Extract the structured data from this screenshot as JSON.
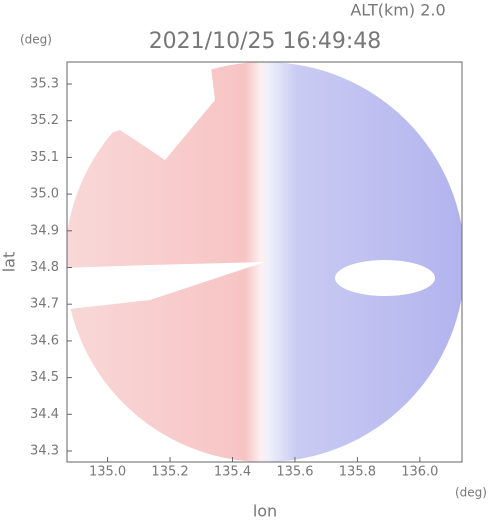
{
  "chart_data": {
    "type": "radar_field",
    "title": "2021/10/25 16:49:48",
    "subtitle": "ALT(km) 2.0",
    "x_label": "lon",
    "y_label": "lat",
    "x_unit": "(deg)",
    "y_unit": "(deg)",
    "xlim": [
      134.87,
      136.135
    ],
    "ylim": [
      34.27,
      35.36
    ],
    "xticks": [
      {
        "value": 135,
        "label": "135.0"
      },
      135.2,
      135.4,
      135.6,
      135.8,
      {
        "value": 136,
        "label": "136.0"
      }
    ],
    "yticks": [
      34.3,
      34.4,
      34.5,
      34.6,
      34.7,
      34.8,
      34.9,
      {
        "value": 35,
        "label": "35.0"
      },
      35.1,
      35.2,
      35.3
    ]
  }
}
